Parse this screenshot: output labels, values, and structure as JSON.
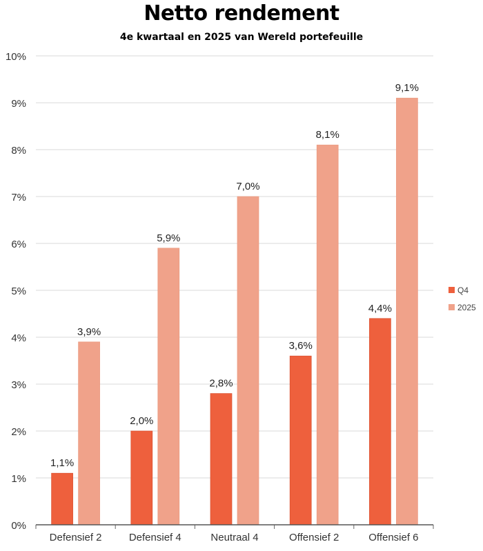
{
  "chart_data": {
    "type": "bar",
    "title": "Netto rendement",
    "subtitle": "4e kwartaal en 2025 van Wereld portefeuille",
    "categories": [
      "Defensief 2",
      "Defensief 4",
      "Neutraal 4",
      "Offensief 2",
      "Offensief 6"
    ],
    "series": [
      {
        "name": "Q4",
        "values": [
          1.1,
          2.0,
          2.8,
          3.6,
          4.4
        ],
        "labels": [
          "1,1%",
          "2,0%",
          "2,8%",
          "3,6%",
          "4,4%"
        ],
        "color": "#EE603D"
      },
      {
        "name": "2025",
        "values": [
          3.9,
          5.9,
          7.0,
          8.1,
          9.1
        ],
        "labels": [
          "3,9%",
          "5,9%",
          "7,0%",
          "8,1%",
          "9,1%"
        ],
        "color": "#F0A28A"
      }
    ],
    "yticks": [
      "0%",
      "1%",
      "2%",
      "3%",
      "4%",
      "5%",
      "6%",
      "7%",
      "8%",
      "9%",
      "10%"
    ],
    "ylim": [
      0,
      10
    ],
    "grid": true,
    "legend": "right"
  }
}
